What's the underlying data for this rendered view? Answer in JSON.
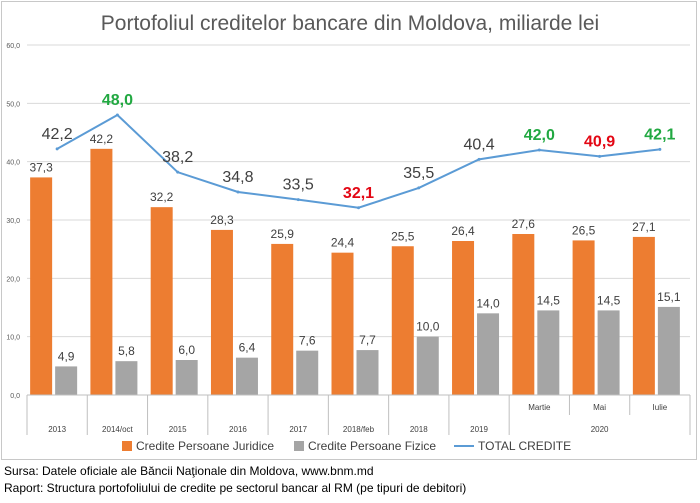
{
  "chart_data": {
    "type": "bar+line",
    "title": "Portofoliul creditelor bancare din Moldova, miliarde lei",
    "y_ticks": [
      "0,0",
      "10,0",
      "20,0",
      "30,0",
      "40,0",
      "50,0",
      "60,0"
    ],
    "ylim": [
      0,
      60
    ],
    "categories": [
      "2013",
      "2014/oct",
      "2015",
      "2016",
      "2017",
      "2018/feb",
      "2018",
      "2019",
      "Martie",
      "Mai",
      "Iulie"
    ],
    "group_label": "2020",
    "grid": true,
    "legend_position": "bottom",
    "series": [
      {
        "name": "Credite Persoane Juridice",
        "kind": "bar",
        "color": "#ed7d31",
        "values": [
          37.3,
          42.2,
          32.2,
          28.3,
          25.9,
          24.4,
          25.5,
          26.4,
          27.6,
          26.5,
          27.1
        ],
        "labels": [
          "37,3",
          "42,2",
          "32,2",
          "28,3",
          "25,9",
          "24,4",
          "25,5",
          "26,4",
          "27,6",
          "26,5",
          "27,1"
        ]
      },
      {
        "name": "Credite Persoane Fizice",
        "kind": "bar",
        "color": "#a5a5a5",
        "values": [
          4.9,
          5.8,
          6.0,
          6.4,
          7.6,
          7.7,
          10.0,
          14.0,
          14.5,
          14.5,
          15.1
        ],
        "labels": [
          "4,9",
          "5,8",
          "6,0",
          "6,4",
          "7,6",
          "7,7",
          "10,0",
          "14,0",
          "14,5",
          "14,5",
          "15,1"
        ]
      },
      {
        "name": "TOTAL CREDITE",
        "kind": "line",
        "color": "#5b9bd5",
        "values": [
          42.2,
          48.0,
          38.2,
          34.8,
          33.5,
          32.1,
          35.5,
          40.4,
          42.0,
          40.9,
          42.1
        ],
        "labels": [
          "42,2",
          "48,0",
          "38,2",
          "34,8",
          "33,5",
          "32,1",
          "35,5",
          "40,4",
          "42,0",
          "40,9",
          "42,1"
        ],
        "label_styles": [
          "normal",
          "green",
          "normal",
          "normal",
          "normal",
          "red",
          "normal",
          "normal",
          "green",
          "red",
          "green"
        ]
      }
    ],
    "label_colors": {
      "normal": "#404040",
      "green": "#21a841",
      "red": "#e30613"
    }
  },
  "footer": {
    "line1": "Sursa: Datele oficiale ale Băncii Naţionale din Moldova, www.bnm.md",
    "line2": "Raport: Structura portofoliului de credite pe sectorul bancar al RM (pe tipuri de debitori)"
  }
}
